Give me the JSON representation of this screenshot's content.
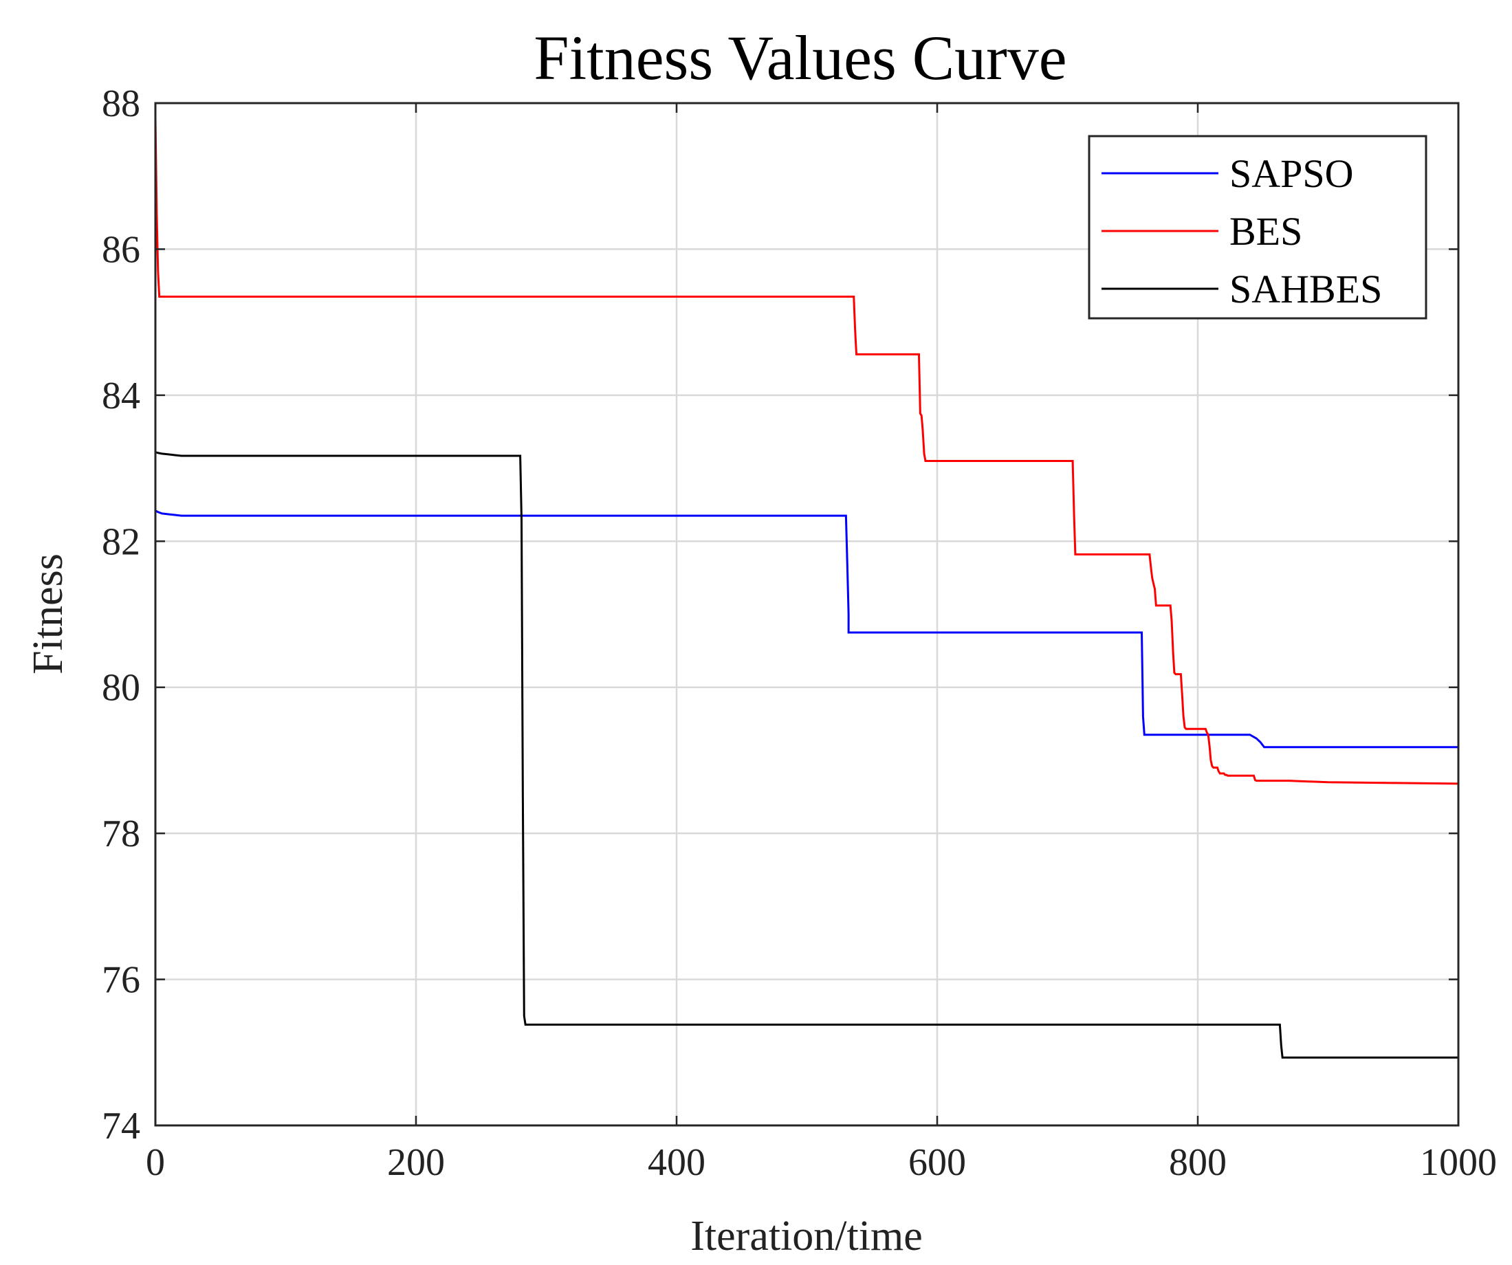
{
  "chart_data": {
    "type": "line",
    "title": "Fitness Values Curve",
    "xlabel": "Iteration/time",
    "ylabel": "Fitness",
    "xlim": [
      0,
      1000
    ],
    "ylim": [
      74,
      88
    ],
    "xticks": [
      0,
      200,
      400,
      600,
      800,
      1000
    ],
    "yticks": [
      74,
      76,
      78,
      80,
      82,
      84,
      86,
      88
    ],
    "xtick_labels": [
      "0",
      "200",
      "400",
      "600",
      "800",
      "1000"
    ],
    "ytick_labels": [
      "74",
      "76",
      "78",
      "80",
      "82",
      "84",
      "86",
      "88"
    ],
    "grid": true,
    "legend_position": "top-right",
    "series": [
      {
        "name": "SAPSO",
        "color": "#0000ff",
        "x": [
          0,
          2,
          5,
          10,
          15,
          20,
          530,
          531,
          532,
          532,
          757,
          758,
          759,
          840,
          845,
          848,
          851,
          1000
        ],
        "y": [
          82.42,
          82.4,
          82.38,
          82.37,
          82.36,
          82.35,
          82.35,
          81.7,
          81.0,
          80.75,
          80.75,
          79.6,
          79.35,
          79.35,
          79.3,
          79.25,
          79.18,
          79.18
        ]
      },
      {
        "name": "BES",
        "color": "#ff0000",
        "x": [
          0,
          1,
          2,
          3,
          536,
          537,
          538,
          586,
          587,
          588,
          589,
          590,
          591,
          704,
          705,
          706,
          763,
          764,
          765,
          766,
          767,
          768,
          779,
          780,
          781,
          782,
          783,
          787,
          788,
          789,
          790,
          791,
          806,
          807,
          808,
          809,
          810,
          811,
          812,
          815,
          816,
          817,
          820,
          821,
          822,
          823,
          830,
          843,
          844,
          845,
          870,
          900,
          950,
          1000
        ],
        "y": [
          87.8,
          86.5,
          85.7,
          85.35,
          85.35,
          84.9,
          84.56,
          84.56,
          83.75,
          83.72,
          83.5,
          83.2,
          83.1,
          83.1,
          82.4,
          81.82,
          81.82,
          81.65,
          81.5,
          81.42,
          81.35,
          81.12,
          81.12,
          80.9,
          80.5,
          80.2,
          80.18,
          80.18,
          79.9,
          79.6,
          79.45,
          79.43,
          79.43,
          79.38,
          79.35,
          79.2,
          79.0,
          78.92,
          78.9,
          78.9,
          78.85,
          78.82,
          78.82,
          78.8,
          78.8,
          78.79,
          78.79,
          78.79,
          78.73,
          78.72,
          78.72,
          78.7,
          78.69,
          78.68
        ]
      },
      {
        "name": "SAHBES",
        "color": "#000000",
        "x": [
          0,
          2,
          5,
          10,
          15,
          20,
          280,
          281,
          282,
          283,
          284,
          863,
          864,
          865,
          1000
        ],
        "y": [
          83.22,
          83.21,
          83.2,
          83.19,
          83.18,
          83.17,
          83.17,
          82.3,
          78.5,
          75.5,
          75.38,
          75.38,
          75.1,
          74.93,
          74.93
        ]
      }
    ]
  }
}
